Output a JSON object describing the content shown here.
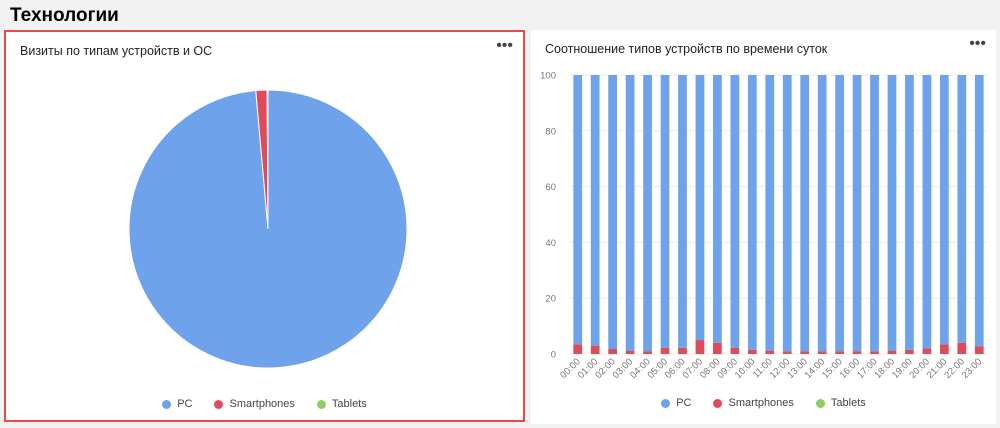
{
  "section": {
    "title": "Технологии"
  },
  "colors": {
    "pc": "#6ea2ea",
    "smartphones": "#de4b5a",
    "tablets": "#8ecd63",
    "highlight": "#e8484a"
  },
  "menu_glyph": "•••",
  "left_card": {
    "title": "Визиты по типам устройств и ОС",
    "legend": [
      "PC",
      "Smartphones",
      "Tablets"
    ]
  },
  "right_card": {
    "title": "Соотношение типов устройств по времени суток",
    "legend": [
      "PC",
      "Smartphones",
      "Tablets"
    ]
  },
  "chart_data": [
    {
      "type": "pie",
      "title": "Визиты по типам устройств и ОС",
      "categories": [
        "PC",
        "Smartphones",
        "Tablets"
      ],
      "values": [
        98.6,
        1.3,
        0.1
      ]
    },
    {
      "type": "bar",
      "stacked": true,
      "title": "Соотношение типов устройств по времени суток",
      "categories": [
        "00:00",
        "01:00",
        "02:00",
        "03:00",
        "04:00",
        "05:00",
        "06:00",
        "07:00",
        "08:00",
        "09:00",
        "10:00",
        "11:00",
        "12:00",
        "13:00",
        "14:00",
        "15:00",
        "16:00",
        "17:00",
        "18:00",
        "19:00",
        "20:00",
        "21:00",
        "22:00",
        "23:00"
      ],
      "ylim": [
        0,
        100
      ],
      "yticks": [
        0,
        20,
        40,
        60,
        80,
        100
      ],
      "series": [
        {
          "name": "PC",
          "values": [
            96.5,
            97,
            98.2,
            98.8,
            99,
            97.8,
            97.8,
            95,
            96,
            97.8,
            98.5,
            98.8,
            99,
            99,
            99,
            99,
            99,
            99,
            98.8,
            98.5,
            98,
            96.5,
            96,
            97.2
          ]
        },
        {
          "name": "Smartphones",
          "values": [
            3.5,
            3,
            1.8,
            1.2,
            1,
            2.2,
            2.2,
            5,
            4,
            2.2,
            1.5,
            1.2,
            1,
            1,
            1,
            1,
            1,
            1,
            1.2,
            1.5,
            2,
            3.5,
            4,
            2.8
          ]
        },
        {
          "name": "Tablets",
          "values": [
            0,
            0,
            0,
            0,
            0,
            0,
            0,
            0,
            0,
            0,
            0,
            0,
            0,
            0,
            0,
            0,
            0,
            0,
            0,
            0,
            0,
            0,
            0,
            0
          ]
        }
      ]
    }
  ]
}
